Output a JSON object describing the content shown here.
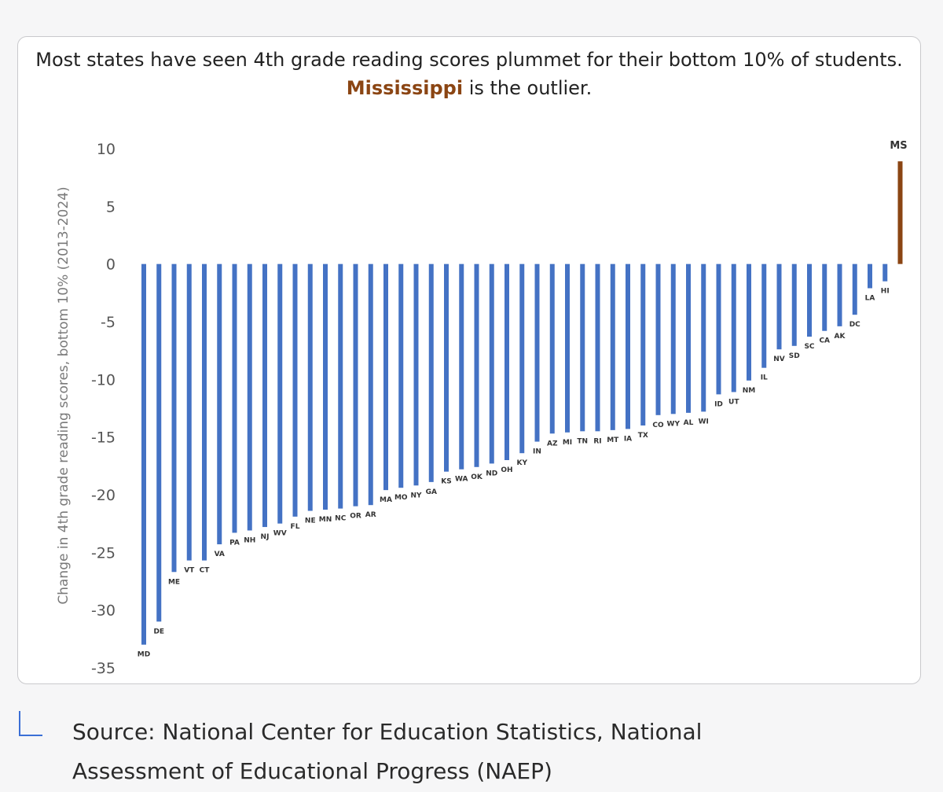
{
  "title": {
    "before": "Most states have seen 4th grade reading scores plummet for their bottom 10% of students.",
    "highlight": "Mississippi",
    "after": "is the outlier."
  },
  "source": {
    "line1": "Source: National Center for Education Statistics, National",
    "line2": "Assessment of Educational Progress (NAEP)"
  },
  "colors": {
    "bar": "#4472c4",
    "highlight_bar": "#8b4513",
    "source_bracket": "#3b6fd6"
  },
  "chart_data": {
    "type": "bar",
    "title": "Most states have seen 4th grade reading scores plummet for their bottom 10% of students. Mississippi is the outlier.",
    "xlabel": "",
    "ylabel": "Change in 4th grade reading scores, bottom 10% (2013-2024)",
    "ylim": [
      -35,
      10
    ],
    "yticks": [
      10,
      5,
      0,
      -5,
      -10,
      -15,
      -20,
      -25,
      -30,
      -35
    ],
    "grid": false,
    "legend": "none",
    "highlight_category": "MS",
    "categories": [
      "MD",
      "DE",
      "ME",
      "VT",
      "CT",
      "VA",
      "PA",
      "NH",
      "NJ",
      "WV",
      "FL",
      "NE",
      "MN",
      "NC",
      "OR",
      "AR",
      "MA",
      "MO",
      "NY",
      "GA",
      "KS",
      "WA",
      "OK",
      "ND",
      "OH",
      "KY",
      "IN",
      "AZ",
      "MI",
      "TN",
      "RI",
      "MT",
      "IA",
      "TX",
      "CO",
      "WY",
      "AL",
      "WI",
      "ID",
      "UT",
      "NM",
      "IL",
      "NV",
      "SD",
      "SC",
      "CA",
      "AK",
      "DC",
      "LA",
      "HI",
      "MS"
    ],
    "values": [
      -33,
      -31,
      -26.7,
      -25.7,
      -25.7,
      -24.3,
      -23.3,
      -23.1,
      -22.8,
      -22.5,
      -21.9,
      -21.4,
      -21.3,
      -21.2,
      -21,
      -20.9,
      -19.6,
      -19.4,
      -19.2,
      -18.9,
      -18,
      -17.8,
      -17.6,
      -17.3,
      -17,
      -16.4,
      -15.4,
      -14.7,
      -14.6,
      -14.5,
      -14.5,
      -14.4,
      -14.3,
      -14,
      -13.1,
      -13,
      -12.9,
      -12.8,
      -11.3,
      -11.1,
      -10.1,
      -9,
      -7.4,
      -7.1,
      -6.3,
      -5.8,
      -5.4,
      -4.4,
      -2.1,
      -1.5,
      8.9
    ]
  }
}
